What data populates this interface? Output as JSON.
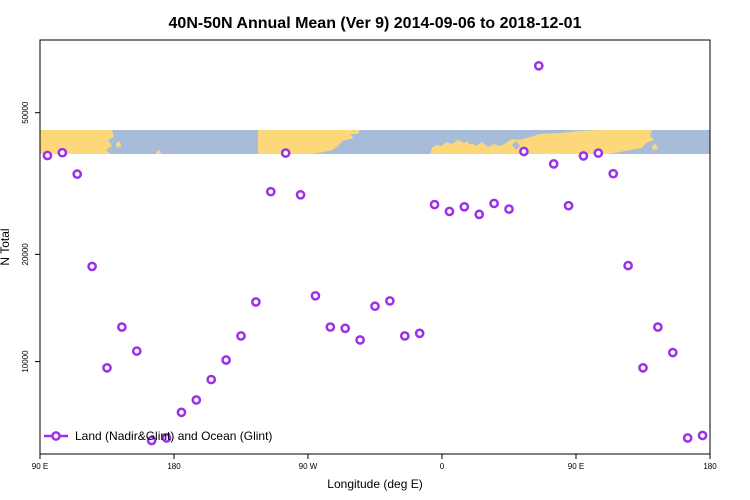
{
  "chart_data": {
    "type": "scatter",
    "title": "40N-50N Annual Mean (Ver 9)   2014-09-06 to 2018-12-01",
    "xlabel": "Longitude (deg E)",
    "ylabel": "N Total",
    "xlim": [
      90,
      540
    ],
    "ylim_log": [
      5500,
      80000
    ],
    "y_scale": "log",
    "xticks": [
      {
        "value": 90,
        "label": "90 E"
      },
      {
        "value": 180,
        "label": "180"
      },
      {
        "value": 270,
        "label": "90 W"
      },
      {
        "value": 360,
        "label": "0"
      },
      {
        "value": 450,
        "label": "90 E"
      },
      {
        "value": 540,
        "label": "180"
      }
    ],
    "yticks": [
      {
        "value": 10000,
        "label": "10000"
      },
      {
        "value": 20000,
        "label": "20000"
      },
      {
        "value": 50000,
        "label": "50000"
      }
    ],
    "legend": {
      "label": "Land (Nadir&Glint) and Ocean (Glint)",
      "position": "bottom-left"
    },
    "colors": {
      "series": "#9b30e8",
      "land": "#fdd87a",
      "ocean": "#a7bcd9"
    },
    "series": [
      {
        "name": "Land (Nadir&Glint) and Ocean (Glint)",
        "x": [
          95,
          105,
          115,
          125,
          135,
          145,
          155,
          165,
          175,
          185,
          195,
          205,
          215,
          225,
          235,
          245,
          255,
          265,
          275,
          285,
          295,
          305,
          315,
          325,
          335,
          345,
          355,
          365,
          375,
          385,
          395,
          405,
          415,
          425,
          435,
          445,
          455,
          465,
          475,
          485,
          495,
          505,
          515,
          525,
          535
        ],
        "y": [
          37900,
          38600,
          33600,
          18500,
          9600,
          12500,
          10700,
          6000,
          6100,
          7200,
          7800,
          8900,
          10100,
          11800,
          14700,
          30000,
          38500,
          29400,
          15300,
          12500,
          12400,
          11500,
          14300,
          14800,
          11800,
          12000,
          27600,
          26400,
          27200,
          25900,
          27800,
          26800,
          38900,
          67700,
          35900,
          27400,
          37800,
          38500,
          33700,
          18600,
          9600,
          12500,
          10600,
          6100,
          6200
        ]
      }
    ]
  }
}
